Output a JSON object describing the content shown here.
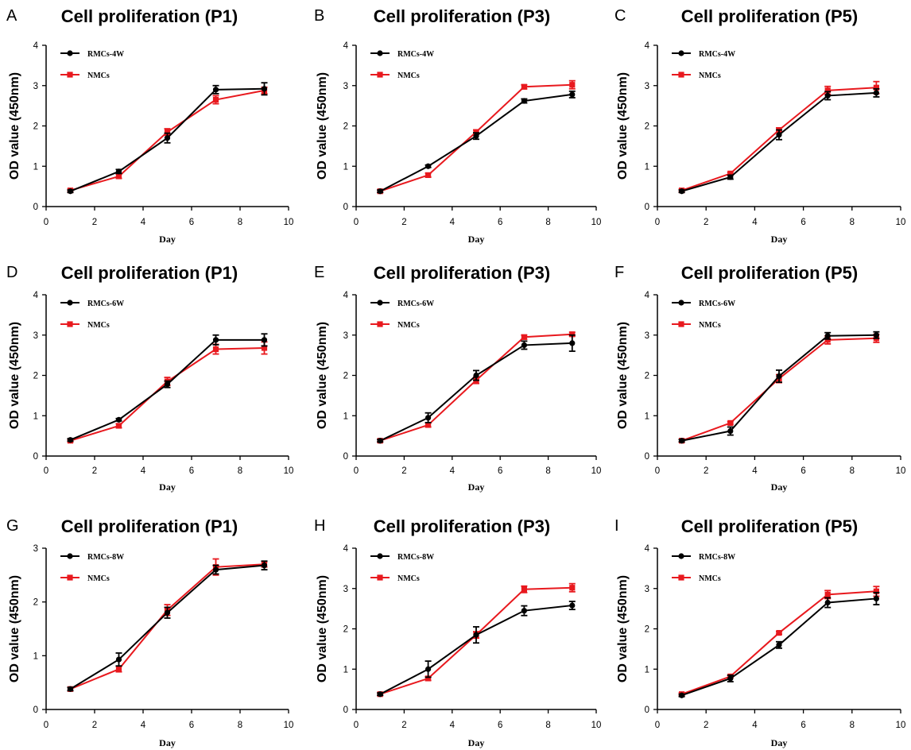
{
  "colors": {
    "rmc": "#000000",
    "nmc": "#e8191e"
  },
  "chart_data": [
    {
      "id": "A",
      "type": "line",
      "title": "Cell proliferation (P1)",
      "xlabel": "Day",
      "ylabel": "OD value (450nm)",
      "xlim": [
        0,
        10
      ],
      "ylim": [
        0,
        4
      ],
      "xticks": [
        "0",
        "2",
        "4",
        "6",
        "8",
        "10"
      ],
      "yticks": [
        "0",
        "1",
        "2",
        "3",
        "4"
      ],
      "x": [
        1,
        3,
        5,
        7,
        9
      ],
      "series": [
        {
          "name": "RMCs-4W",
          "color": "#000000",
          "values": [
            0.38,
            0.87,
            1.7,
            2.9,
            2.92
          ],
          "errors": [
            0.03,
            0.05,
            0.12,
            0.1,
            0.15
          ]
        },
        {
          "name": "NMCs",
          "color": "#e8191e",
          "values": [
            0.4,
            0.75,
            1.85,
            2.65,
            2.88
          ],
          "errors": [
            0.03,
            0.05,
            0.08,
            0.1,
            0.08
          ]
        }
      ]
    },
    {
      "id": "B",
      "type": "line",
      "title": "Cell proliferation (P3)",
      "xlabel": "Day",
      "ylabel": "OD value (450nm)",
      "xlim": [
        0,
        10
      ],
      "ylim": [
        0,
        4
      ],
      "xticks": [
        "0",
        "2",
        "4",
        "6",
        "8",
        "10"
      ],
      "yticks": [
        "0",
        "1",
        "2",
        "3",
        "4"
      ],
      "x": [
        1,
        3,
        5,
        7,
        9
      ],
      "series": [
        {
          "name": "RMCs-4W",
          "color": "#000000",
          "values": [
            0.38,
            1.0,
            1.75,
            2.62,
            2.78
          ],
          "errors": [
            0.03,
            0.03,
            0.08,
            0.05,
            0.08
          ]
        },
        {
          "name": "NMCs",
          "color": "#e8191e",
          "values": [
            0.38,
            0.78,
            1.85,
            2.97,
            3.02
          ],
          "errors": [
            0.03,
            0.05,
            0.05,
            0.05,
            0.1
          ]
        }
      ]
    },
    {
      "id": "C",
      "type": "line",
      "title": "Cell proliferation (P5)",
      "xlabel": "Day",
      "ylabel": "OD value (450nm)",
      "xlim": [
        0,
        10
      ],
      "ylim": [
        0,
        4
      ],
      "xticks": [
        "0",
        "2",
        "4",
        "6",
        "8",
        "10"
      ],
      "yticks": [
        "0",
        "1",
        "2",
        "3",
        "4"
      ],
      "x": [
        1,
        3,
        5,
        7,
        9
      ],
      "series": [
        {
          "name": "RMCs-4W",
          "color": "#000000",
          "values": [
            0.38,
            0.73,
            1.78,
            2.75,
            2.82
          ],
          "errors": [
            0.03,
            0.05,
            0.12,
            0.1,
            0.1
          ]
        },
        {
          "name": "NMCs",
          "color": "#e8191e",
          "values": [
            0.4,
            0.82,
            1.9,
            2.88,
            2.95
          ],
          "errors": [
            0.03,
            0.03,
            0.05,
            0.1,
            0.15
          ]
        }
      ]
    },
    {
      "id": "D",
      "type": "line",
      "title": "Cell proliferation (P1)",
      "xlabel": "Day",
      "ylabel": "OD value (450nm)",
      "xlim": [
        0,
        10
      ],
      "ylim": [
        0,
        4
      ],
      "xticks": [
        "0",
        "2",
        "4",
        "6",
        "8",
        "10"
      ],
      "yticks": [
        "0",
        "1",
        "2",
        "3",
        "4"
      ],
      "x": [
        1,
        3,
        5,
        7,
        9
      ],
      "series": [
        {
          "name": "RMCs-6W",
          "color": "#000000",
          "values": [
            0.4,
            0.9,
            1.78,
            2.88,
            2.88
          ],
          "errors": [
            0.03,
            0.03,
            0.08,
            0.12,
            0.15
          ]
        },
        {
          "name": "NMCs",
          "color": "#e8191e",
          "values": [
            0.38,
            0.75,
            1.85,
            2.65,
            2.68
          ],
          "errors": [
            0.03,
            0.05,
            0.1,
            0.12,
            0.15
          ]
        }
      ]
    },
    {
      "id": "E",
      "type": "line",
      "title": "Cell proliferation (P3)",
      "xlabel": "Day",
      "ylabel": "OD value (450nm)",
      "xlim": [
        0,
        10
      ],
      "ylim": [
        0,
        4
      ],
      "xticks": [
        "0",
        "2",
        "4",
        "6",
        "8",
        "10"
      ],
      "yticks": [
        "0",
        "1",
        "2",
        "3",
        "4"
      ],
      "x": [
        1,
        3,
        5,
        7,
        9
      ],
      "series": [
        {
          "name": "RMCs-6W",
          "color": "#000000",
          "values": [
            0.38,
            0.95,
            2.0,
            2.75,
            2.8
          ],
          "errors": [
            0.03,
            0.12,
            0.12,
            0.1,
            0.2
          ]
        },
        {
          "name": "NMCs",
          "color": "#e8191e",
          "values": [
            0.38,
            0.77,
            1.88,
            2.95,
            3.02
          ],
          "errors": [
            0.03,
            0.05,
            0.08,
            0.05,
            0.05
          ]
        }
      ]
    },
    {
      "id": "F",
      "type": "line",
      "title": "Cell proliferation (P5)",
      "xlabel": "Day",
      "ylabel": "OD value (450nm)",
      "xlim": [
        0,
        10
      ],
      "ylim": [
        0,
        4
      ],
      "xticks": [
        "0",
        "2",
        "4",
        "6",
        "8",
        "10"
      ],
      "yticks": [
        "0",
        "1",
        "2",
        "3",
        "4"
      ],
      "x": [
        1,
        3,
        5,
        7,
        9
      ],
      "series": [
        {
          "name": "RMCs-6W",
          "color": "#000000",
          "values": [
            0.38,
            0.62,
            1.98,
            2.98,
            3.0
          ],
          "errors": [
            0.03,
            0.1,
            0.15,
            0.08,
            0.08
          ]
        },
        {
          "name": "NMCs",
          "color": "#e8191e",
          "values": [
            0.38,
            0.82,
            1.92,
            2.88,
            2.92
          ],
          "errors": [
            0.03,
            0.03,
            0.1,
            0.1,
            0.1
          ]
        }
      ]
    },
    {
      "id": "G",
      "type": "line",
      "title": "Cell proliferation (P1)",
      "xlabel": "Day",
      "ylabel": "OD value (450nm)",
      "xlim": [
        0,
        10
      ],
      "ylim": [
        0,
        3
      ],
      "xticks": [
        "0",
        "2",
        "4",
        "6",
        "8",
        "10"
      ],
      "yticks": [
        "0",
        "1",
        "2",
        "3"
      ],
      "x": [
        1,
        3,
        5,
        7,
        9
      ],
      "series": [
        {
          "name": "RMCs-8W",
          "color": "#000000",
          "values": [
            0.38,
            0.93,
            1.8,
            2.6,
            2.68
          ],
          "errors": [
            0.03,
            0.12,
            0.1,
            0.08,
            0.08
          ]
        },
        {
          "name": "NMCs",
          "color": "#e8191e",
          "values": [
            0.38,
            0.75,
            1.85,
            2.65,
            2.7
          ],
          "errors": [
            0.03,
            0.05,
            0.1,
            0.15,
            0.05
          ]
        }
      ]
    },
    {
      "id": "H",
      "type": "line",
      "title": "Cell proliferation (P3)",
      "xlabel": "Day",
      "ylabel": "OD value (450nm)",
      "xlim": [
        0,
        10
      ],
      "ylim": [
        0,
        4
      ],
      "xticks": [
        "0",
        "2",
        "4",
        "6",
        "8",
        "10"
      ],
      "yticks": [
        "0",
        "1",
        "2",
        "3",
        "4"
      ],
      "x": [
        1,
        3,
        5,
        7,
        9
      ],
      "series": [
        {
          "name": "RMCs-8W",
          "color": "#000000",
          "values": [
            0.38,
            1.0,
            1.85,
            2.45,
            2.58
          ],
          "errors": [
            0.03,
            0.2,
            0.2,
            0.12,
            0.1
          ]
        },
        {
          "name": "NMCs",
          "color": "#e8191e",
          "values": [
            0.38,
            0.77,
            1.85,
            2.98,
            3.02
          ],
          "errors": [
            0.03,
            0.05,
            0.08,
            0.08,
            0.1
          ]
        }
      ]
    },
    {
      "id": "I",
      "type": "line",
      "title": "Cell proliferation (P5)",
      "xlabel": "Day",
      "ylabel": "OD value (450nm)",
      "xlim": [
        0,
        10
      ],
      "ylim": [
        0,
        4
      ],
      "xticks": [
        "0",
        "2",
        "4",
        "6",
        "8",
        "10"
      ],
      "yticks": [
        "0",
        "1",
        "2",
        "3",
        "4"
      ],
      "x": [
        1,
        3,
        5,
        7,
        9
      ],
      "series": [
        {
          "name": "RMCs-8W",
          "color": "#000000",
          "values": [
            0.35,
            0.77,
            1.6,
            2.65,
            2.75
          ],
          "errors": [
            0.03,
            0.08,
            0.08,
            0.12,
            0.15
          ]
        },
        {
          "name": "NMCs",
          "color": "#e8191e",
          "values": [
            0.38,
            0.82,
            1.9,
            2.85,
            2.93
          ],
          "errors": [
            0.03,
            0.03,
            0.03,
            0.1,
            0.12
          ]
        }
      ]
    }
  ]
}
